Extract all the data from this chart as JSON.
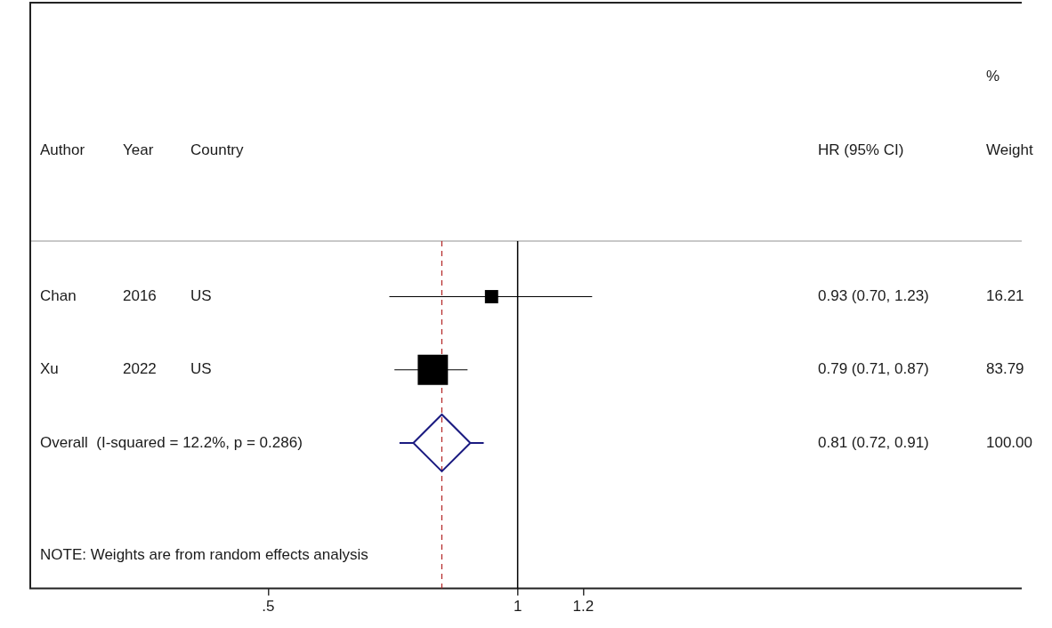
{
  "chart_data": {
    "type": "scatter",
    "orientation": "horizontal",
    "log": "x",
    "categories": [
      "Chan",
      "Xu",
      "Overall  (I-squared = 12.2%, p = 0.286)"
    ],
    "xlim": [
      0.258,
      4.06
    ],
    "xticks": [
      {
        "value": 0.5,
        "label": ".5"
      },
      1,
      1.2
    ],
    "series": [
      {
        "type": "bubble",
        "marker": "square",
        "color": "#000000",
        "values": [
          0.93,
          0.79,
          null
        ],
        "errors": [
          [
            0.7,
            1.23
          ],
          [
            0.71,
            0.87
          ],
          null
        ],
        "sizes": [
          0.193,
          1,
          null
        ]
      },
      {
        "marker": "diamond",
        "color": "#1a1a80",
        "values": [
          null,
          null,
          0.81
        ],
        "errors": [
          null,
          null,
          [
            0.72,
            0.91
          ]
        ]
      }
    ],
    "ref_lines": [
      {
        "axis": "x",
        "value": 1,
        "color": "#000000",
        "line_style": "solid"
      },
      {
        "axis": "x",
        "value": 0.81,
        "color": "#b22222",
        "line_style": "dashed"
      }
    ],
    "annotations": [
      "Author",
      "Year",
      "Country",
      "HR (95% CI)",
      "%",
      "Weight",
      "2016",
      "US",
      "0.93 (0.70, 1.23)",
      "16.21",
      "2022",
      "US",
      "0.79 (0.71, 0.87)",
      "83.79",
      "0.81 (0.72, 0.91)",
      "100.00",
      "NOTE: Weights are from random effects analysis"
    ]
  }
}
